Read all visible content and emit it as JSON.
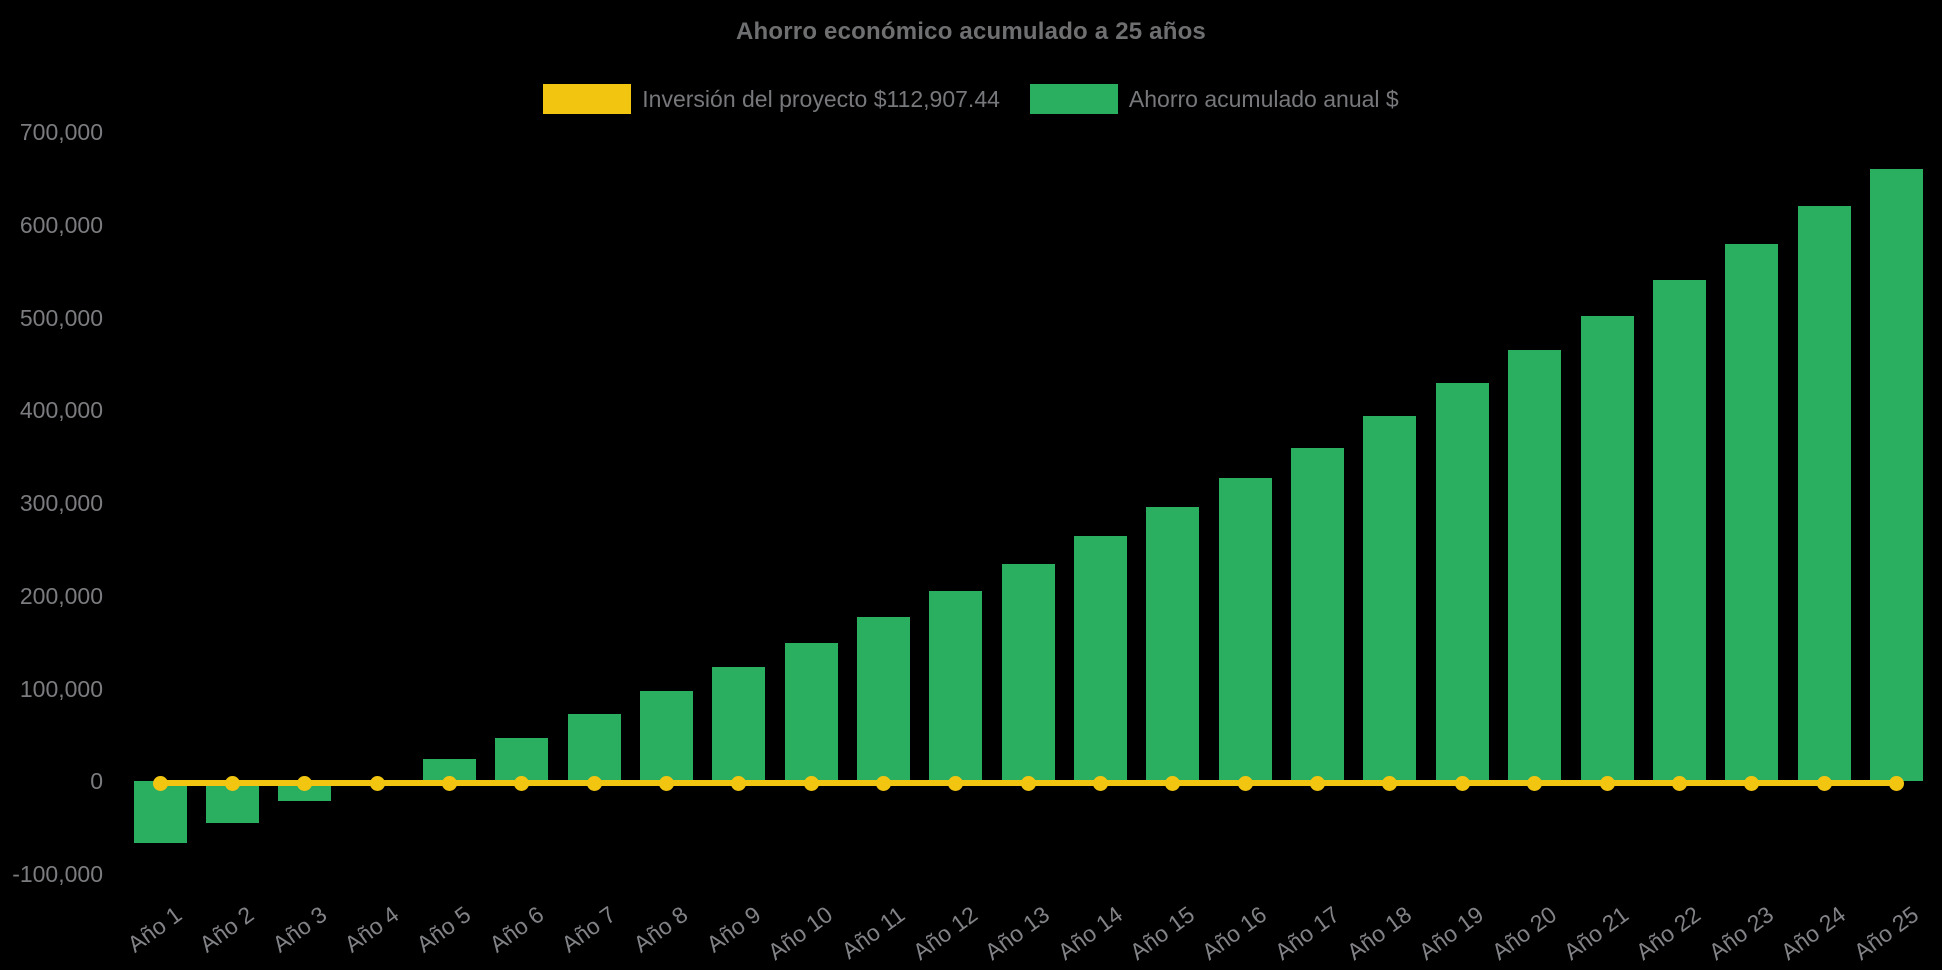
{
  "chart_data": {
    "type": "bar",
    "title": "Ahorro económico acumulado a 25 años",
    "background_color": "#000000",
    "text_color": "#77787b",
    "grid": false,
    "legend_position": "top",
    "x_tick_rotation": -36,
    "ylim": [
      -100000,
      700000
    ],
    "ytick_step": 100000,
    "ytick_labels": [
      "700,000",
      "600,000",
      "500,000",
      "400,000",
      "300,000",
      "200,000",
      "100,000",
      "0",
      "-100,000"
    ],
    "categories": [
      "Año 1",
      "Año 2",
      "Año 3",
      "Año 4",
      "Año 5",
      "Año 6",
      "Año 7",
      "Año 8",
      "Año 9",
      "Año 10",
      "Año 11",
      "Año 12",
      "Año 13",
      "Año 14",
      "Año 15",
      "Año 16",
      "Año 17",
      "Año 18",
      "Año 19",
      "Año 20",
      "Año 21",
      "Año 22",
      "Año 23",
      "Año 24",
      "Año 25"
    ],
    "series": [
      {
        "name": "Inversión del proyecto $112,907.44",
        "type": "line",
        "color": "#f2c511",
        "marker": "circle",
        "values": [
          0,
          0,
          0,
          0,
          0,
          0,
          0,
          0,
          0,
          0,
          0,
          0,
          0,
          0,
          0,
          0,
          0,
          0,
          0,
          0,
          0,
          0,
          0,
          0,
          0
        ]
      },
      {
        "name": "Ahorro acumulado anual $",
        "type": "bar",
        "color": "#2aae60",
        "values": [
          -67000,
          -44500,
          -21500,
          1000,
          23500,
          46500,
          72000,
          97000,
          123000,
          149000,
          177000,
          205000,
          234000,
          264000,
          295500,
          326500,
          359000,
          393500,
          429000,
          465000,
          501500,
          540000,
          579000,
          620000,
          660000
        ]
      }
    ]
  }
}
